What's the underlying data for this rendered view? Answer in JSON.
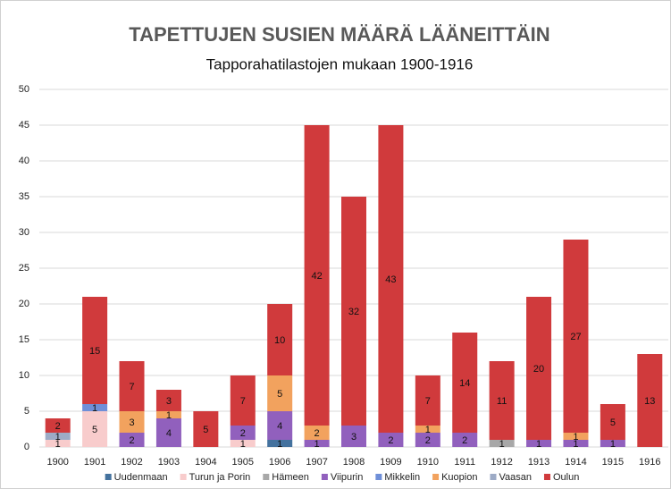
{
  "chart_data": {
    "type": "bar",
    "stacked": true,
    "title": "TAPETTUJEN SUSIEN MÄÄRÄ LÄÄNEITTÄIN",
    "subtitle": "Tapporahatilastojen mukaan 1900-1916",
    "categories": [
      "1900",
      "1901",
      "1902",
      "1903",
      "1904",
      "1905",
      "1906",
      "1907",
      "1908",
      "1909",
      "1910",
      "1911",
      "1912",
      "1913",
      "1914",
      "1915",
      "1916"
    ],
    "series": [
      {
        "name": "Uudenmaan",
        "color": "#44729e",
        "values": [
          0,
          0,
          0,
          0,
          0,
          0,
          1,
          0,
          0,
          0,
          0,
          0,
          0,
          0,
          0,
          0,
          0
        ]
      },
      {
        "name": "Turun ja Porin",
        "color": "#f8cccc",
        "values": [
          1,
          5,
          0,
          0,
          0,
          1,
          0,
          0,
          0,
          0,
          0,
          0,
          0,
          0,
          0,
          0,
          0
        ]
      },
      {
        "name": "Hämeen",
        "color": "#a8a8a8",
        "values": [
          0,
          0,
          0,
          0,
          0,
          0,
          0,
          0,
          0,
          0,
          0,
          0,
          1,
          0,
          0,
          0,
          0
        ]
      },
      {
        "name": "Viipurin",
        "color": "#9160bd",
        "values": [
          0,
          0,
          2,
          4,
          0,
          2,
          4,
          1,
          3,
          2,
          2,
          2,
          0,
          1,
          1,
          1,
          0
        ]
      },
      {
        "name": "Mikkelin",
        "color": "#6f8fd8",
        "values": [
          0,
          1,
          0,
          0,
          0,
          0,
          0,
          0,
          0,
          0,
          0,
          0,
          0,
          0,
          0,
          0,
          0
        ]
      },
      {
        "name": "Kuopion",
        "color": "#f2a25e",
        "values": [
          0,
          0,
          3,
          1,
          0,
          0,
          5,
          2,
          0,
          0,
          1,
          0,
          0,
          0,
          1,
          0,
          0
        ]
      },
      {
        "name": "Vaasan",
        "color": "#9dabc6",
        "values": [
          1,
          0,
          0,
          0,
          0,
          0,
          0,
          0,
          0,
          0,
          0,
          0,
          0,
          0,
          0,
          0,
          0
        ]
      },
      {
        "name": "Oulun",
        "color": "#d03a3c",
        "values": [
          2,
          15,
          7,
          3,
          5,
          7,
          10,
          42,
          32,
          43,
          7,
          14,
          11,
          20,
          27,
          5,
          13
        ]
      }
    ],
    "ylim": [
      0,
      50
    ],
    "yticks": [
      0,
      5,
      10,
      15,
      20,
      25,
      30,
      35,
      40,
      45,
      50
    ],
    "grid": true,
    "legend": "bottom"
  }
}
